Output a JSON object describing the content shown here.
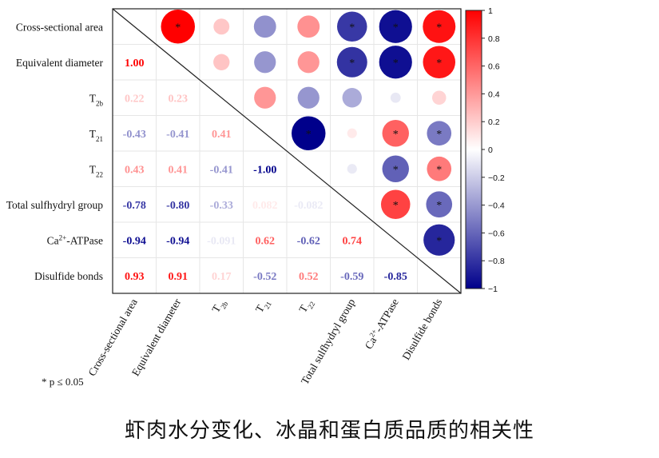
{
  "chart_data": {
    "type": "heatmap",
    "subtype": "correlation-matrix",
    "variables": [
      {
        "name": "Cross-sectional area",
        "sub": "",
        "sup": ""
      },
      {
        "name": "Equivalent diameter",
        "sub": "",
        "sup": ""
      },
      {
        "name": "T",
        "sub": "2b",
        "sup": ""
      },
      {
        "name": "T",
        "sub": "21",
        "sup": ""
      },
      {
        "name": "T",
        "sub": "22",
        "sup": ""
      },
      {
        "name": "Total sulfhydryl group",
        "sub": "",
        "sup": ""
      },
      {
        "name": "Ca",
        "sub": "",
        "sup": "2+",
        "after": "-ATPase"
      },
      {
        "name": "Disulfide bonds",
        "sub": "",
        "sup": ""
      }
    ],
    "lower_labels": [
      [
        null,
        null,
        null,
        null,
        null,
        null,
        null,
        null
      ],
      [
        "1.00",
        null,
        null,
        null,
        null,
        null,
        null,
        null
      ],
      [
        "0.22",
        "0.23",
        null,
        null,
        null,
        null,
        null,
        null
      ],
      [
        "-0.43",
        "-0.41",
        "0.41",
        null,
        null,
        null,
        null,
        null
      ],
      [
        "0.43",
        "0.41",
        "-0.41",
        "-1.00",
        null,
        null,
        null,
        null
      ],
      [
        "-0.78",
        "-0.80",
        "-0.33",
        "0.082",
        "-0.082",
        null,
        null,
        null
      ],
      [
        "-0.94",
        "-0.94",
        "-0.091",
        "0.62",
        "-0.62",
        "0.74",
        null,
        null
      ],
      [
        "0.93",
        "0.91",
        "0.17",
        "-0.52",
        "0.52",
        "-0.59",
        "-0.85",
        null
      ]
    ],
    "values": [
      [
        1,
        1.0,
        0.22,
        -0.43,
        0.43,
        -0.78,
        -0.94,
        0.93
      ],
      [
        1.0,
        1,
        0.23,
        -0.41,
        0.41,
        -0.8,
        -0.94,
        0.91
      ],
      [
        0.22,
        0.23,
        1,
        0.41,
        -0.41,
        -0.33,
        -0.091,
        0.17
      ],
      [
        -0.43,
        -0.41,
        0.41,
        1,
        -1.0,
        0.082,
        0.62,
        -0.52
      ],
      [
        0.43,
        0.41,
        -0.41,
        -1.0,
        1,
        -0.082,
        -0.62,
        0.52
      ],
      [
        -0.78,
        -0.8,
        -0.33,
        0.082,
        -0.082,
        1,
        0.74,
        -0.59
      ],
      [
        -0.94,
        -0.94,
        -0.091,
        0.62,
        -0.62,
        0.74,
        1,
        -0.85
      ],
      [
        0.93,
        0.91,
        0.17,
        -0.52,
        0.52,
        -0.59,
        -0.85,
        1
      ]
    ],
    "significant_upper": [
      [
        false,
        true,
        false,
        false,
        false,
        true,
        true,
        true
      ],
      [
        false,
        false,
        false,
        false,
        false,
        true,
        true,
        true
      ],
      [
        false,
        false,
        false,
        false,
        false,
        false,
        false,
        false
      ],
      [
        false,
        false,
        false,
        false,
        true,
        false,
        true,
        true
      ],
      [
        false,
        false,
        false,
        false,
        false,
        false,
        true,
        true
      ],
      [
        false,
        false,
        false,
        false,
        false,
        false,
        true,
        true
      ],
      [
        false,
        false,
        false,
        false,
        false,
        false,
        false,
        true
      ],
      [
        false,
        false,
        false,
        false,
        false,
        false,
        false,
        false
      ]
    ],
    "star_symbol": "*",
    "colorbar": {
      "min": -1,
      "max": 1,
      "ticks": [
        "1",
        "0.8",
        "0.6",
        "0.4",
        "0.2",
        "0",
        "−0.2",
        "−0.4",
        "−0.6",
        "−0.8",
        "−1"
      ],
      "colors": {
        "negative": "#00008b",
        "mid": "#ffffff",
        "positive": "#ff0000"
      }
    }
  },
  "note": "* p ≤ 0.05",
  "caption": "虾肉水分变化、冰晶和蛋白质品质的相关性"
}
